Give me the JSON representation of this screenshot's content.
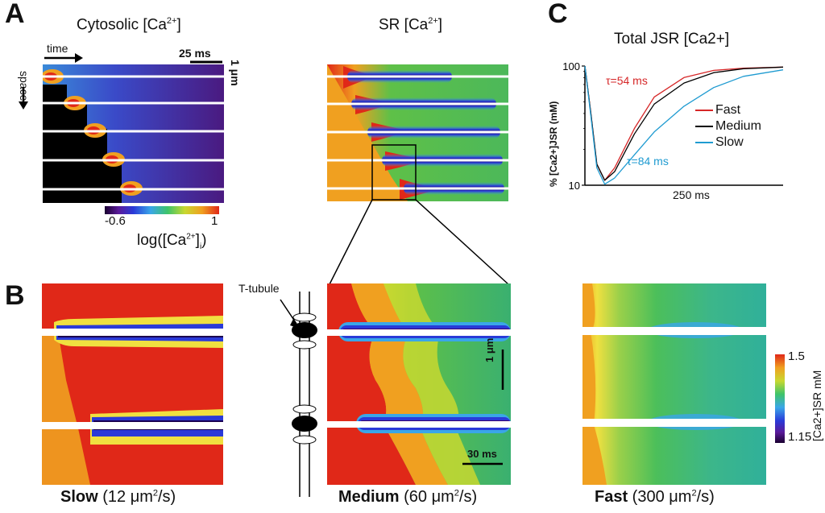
{
  "panels": {
    "A": {
      "letter": "A",
      "cytosolic_title_main": "Cytosolic [Ca",
      "cytosolic_title_sup": "2+",
      "cytosolic_title_end": "]",
      "sr_title_main": "SR [Ca",
      "sr_title_sup": "2+",
      "sr_title_end": "]",
      "time_label": "time",
      "space_label": "space",
      "scale_time": "25 ms",
      "scale_space": "1 μm",
      "colorbar_min": "-0.6",
      "colorbar_max": "1",
      "colorbar_label_main": "log([Ca",
      "colorbar_label_sup": "2+",
      "colorbar_label_end": "]",
      "colorbar_label_sub": "i",
      "colorbar_label_close": ")"
    },
    "B": {
      "letter": "B",
      "ttubule_label": "T-tubule",
      "scale_space": "1 μm",
      "scale_time": "30 ms",
      "colorbar_max": "1.5",
      "colorbar_min": "1.15",
      "colorbar_label": "[Ca2+]SR mM",
      "captions": [
        {
          "bold": "Slow",
          "rest": " (12 μm",
          "sup": "2",
          "end": "/s)"
        },
        {
          "bold": "Medium",
          "rest": " (60 μm",
          "sup": "2",
          "end": "/s)"
        },
        {
          "bold": "Fast",
          "rest": " (300 μm",
          "sup": "2",
          "end": "/s)"
        }
      ]
    },
    "C": {
      "letter": "C",
      "title": "Total JSR [Ca2+]",
      "ylabel": "% [Ca2+]JSR (mM)",
      "xlabel": "250 ms",
      "tau_fast": "τ=54 ms",
      "tau_slow": "τ=84 ms",
      "colors": {
        "fast": "#d62728",
        "medium": "#000000",
        "slow": "#1f9bd1"
      }
    }
  },
  "chart_data": {
    "type": "line",
    "title": "Total JSR [Ca2+]",
    "ylabel": "% [Ca2+]JSR (mM)",
    "xlabel": "250 ms",
    "yscale": "log",
    "yticks": [
      10,
      100
    ],
    "legend_position": "right",
    "series": [
      {
        "name": "Fast",
        "color": "#d62728",
        "t": [
          0,
          0.03,
          0.06,
          0.1,
          0.15,
          0.25,
          0.35,
          0.5,
          0.65,
          0.8,
          1.0
        ],
        "values": [
          100,
          40,
          15,
          11,
          14,
          30,
          55,
          80,
          92,
          96,
          98
        ]
      },
      {
        "name": "Medium",
        "color": "#000000",
        "t": [
          0,
          0.03,
          0.06,
          0.1,
          0.15,
          0.25,
          0.35,
          0.5,
          0.65,
          0.8,
          1.0
        ],
        "values": [
          100,
          40,
          15,
          11,
          13,
          27,
          48,
          72,
          88,
          95,
          98
        ]
      },
      {
        "name": "Slow",
        "color": "#1f9bd1",
        "t": [
          0,
          0.03,
          0.06,
          0.1,
          0.15,
          0.25,
          0.35,
          0.5,
          0.65,
          0.8,
          1.0
        ],
        "values": [
          100,
          38,
          14,
          10.2,
          11.5,
          18,
          28,
          46,
          66,
          82,
          93
        ]
      }
    ],
    "annotations": [
      "τ=54 ms",
      "τ=84 ms"
    ]
  }
}
